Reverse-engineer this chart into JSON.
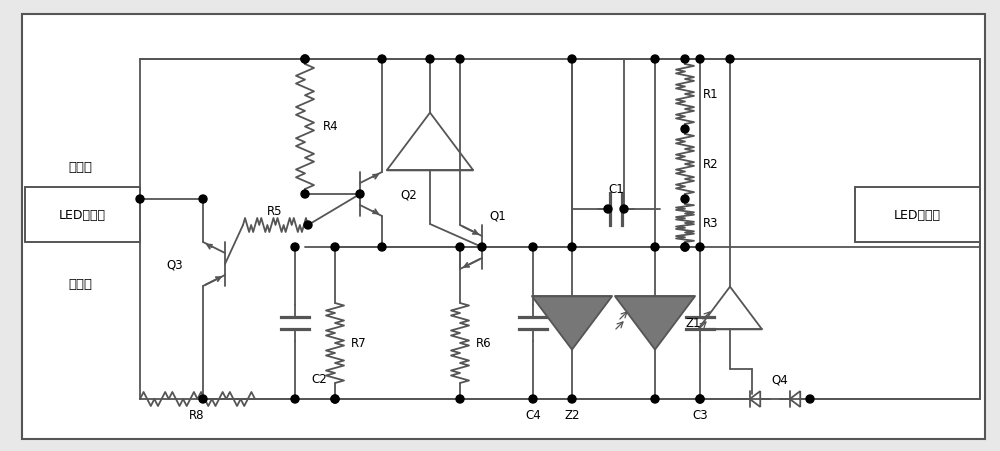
{
  "bg_color": "#e8e8e8",
  "line_color": "#555555",
  "white": "#ffffff",
  "black": "#000000",
  "left_box_label": "LED驱动器",
  "right_box_label": "LED灯模组",
  "pos_label": "输出正",
  "neg_label": "输出负",
  "fig_w": 10.0,
  "fig_h": 4.52,
  "dpi": 100
}
